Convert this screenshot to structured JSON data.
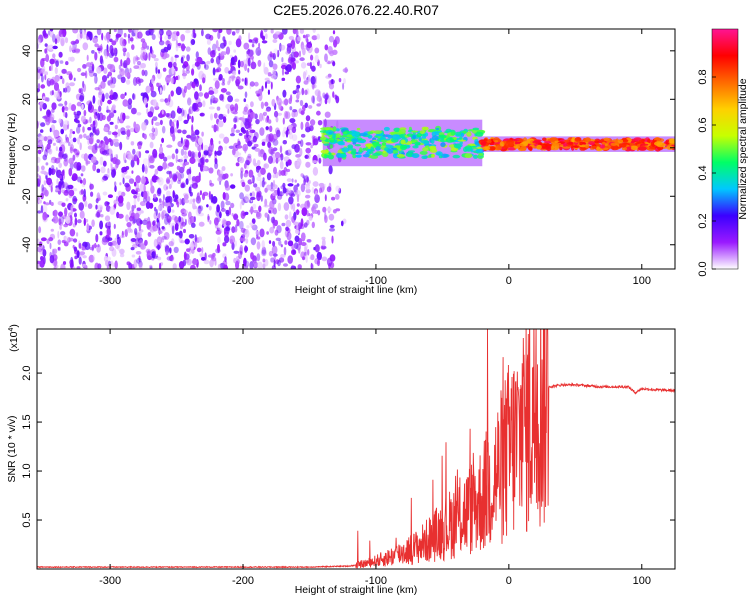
{
  "figure": {
    "title": "C2E5.2026.076.22.40.R07"
  },
  "chart_data": [
    {
      "type": "heatmap",
      "title": "C2E5.2026.076.22.40.R07",
      "xlabel": "Height of straight line (km)",
      "ylabel": "Frequency (Hz)",
      "xlim": [
        -355,
        125
      ],
      "ylim": [
        -50,
        49
      ],
      "xticks": [
        -300,
        -200,
        -100,
        0,
        100
      ],
      "xtick_labels": [
        "-300",
        "-200",
        "-100",
        "0",
        "100"
      ],
      "yticks": [
        -40,
        -20,
        0,
        20,
        40
      ],
      "ytick_labels": [
        "-40",
        "-20",
        "0",
        "20",
        "40"
      ],
      "noise_region": {
        "x_from": -355,
        "x_to": -130,
        "freq_from": -50,
        "freq_to": 49,
        "amplitude": [
          0.02,
          0.18
        ]
      },
      "signal_band": [
        {
          "x_from": -140,
          "x_to": -20,
          "center_freq": 2,
          "half_width": 6,
          "amplitude": [
            0.3,
            0.55
          ]
        },
        {
          "x_from": -20,
          "x_to": 125,
          "center_freq": 1.5,
          "half_width": 2,
          "amplitude": [
            0.7,
            0.97
          ]
        }
      ],
      "colorbar": {
        "label": "Normalized spectral amplitude",
        "range": [
          0,
          1
        ],
        "ticks": [
          0.0,
          0.2,
          0.4,
          0.6,
          0.8
        ],
        "tick_labels": [
          "0.0",
          "0.2",
          "0.4",
          "0.6",
          "0.8"
        ],
        "colors": [
          "#ffffff",
          "#9a1aff",
          "#3b00ff",
          "#00c8ff",
          "#00ff66",
          "#c8ff00",
          "#ffd000",
          "#ff6a00",
          "#ff0000",
          "#ff1493"
        ]
      }
    },
    {
      "type": "line",
      "xlabel": "Height of straight line (km)",
      "ylabel": "SNR (10 * v/v)",
      "y_multiplier_label": "(x10",
      "y_multiplier_exp": "4",
      "y_multiplier_close": ")",
      "xlim": [
        -355,
        125
      ],
      "ylim": [
        0,
        2.45
      ],
      "xticks": [
        -300,
        -200,
        -100,
        0,
        100
      ],
      "xtick_labels": [
        "-300",
        "-200",
        "-100",
        "0",
        "100"
      ],
      "yticks": [
        0.5,
        1.0,
        1.5,
        2.0
      ],
      "ytick_labels": [
        "0.5",
        "1.0",
        "1.5",
        "2.0"
      ],
      "line_color": "#e83030",
      "series": [
        {
          "name": "SNR",
          "x": [
            -355,
            -300,
            -250,
            -200,
            -150,
            -120,
            -110,
            -100,
            -90,
            -80,
            -70,
            -60,
            -50,
            -40,
            -30,
            -20,
            -15,
            -10,
            -5,
            0,
            5,
            10,
            15,
            20,
            25,
            30,
            40,
            50,
            60,
            70,
            80,
            90,
            95,
            100,
            110,
            125
          ],
          "y": [
            0.02,
            0.02,
            0.02,
            0.02,
            0.02,
            0.03,
            0.05,
            0.08,
            0.12,
            0.17,
            0.22,
            0.3,
            0.4,
            0.5,
            0.6,
            0.72,
            0.85,
            0.95,
            1.05,
            1.2,
            1.28,
            1.4,
            1.55,
            1.7,
            1.8,
            1.86,
            1.88,
            1.88,
            1.87,
            1.86,
            1.86,
            1.86,
            1.8,
            1.84,
            1.83,
            1.82
          ]
        }
      ]
    }
  ]
}
